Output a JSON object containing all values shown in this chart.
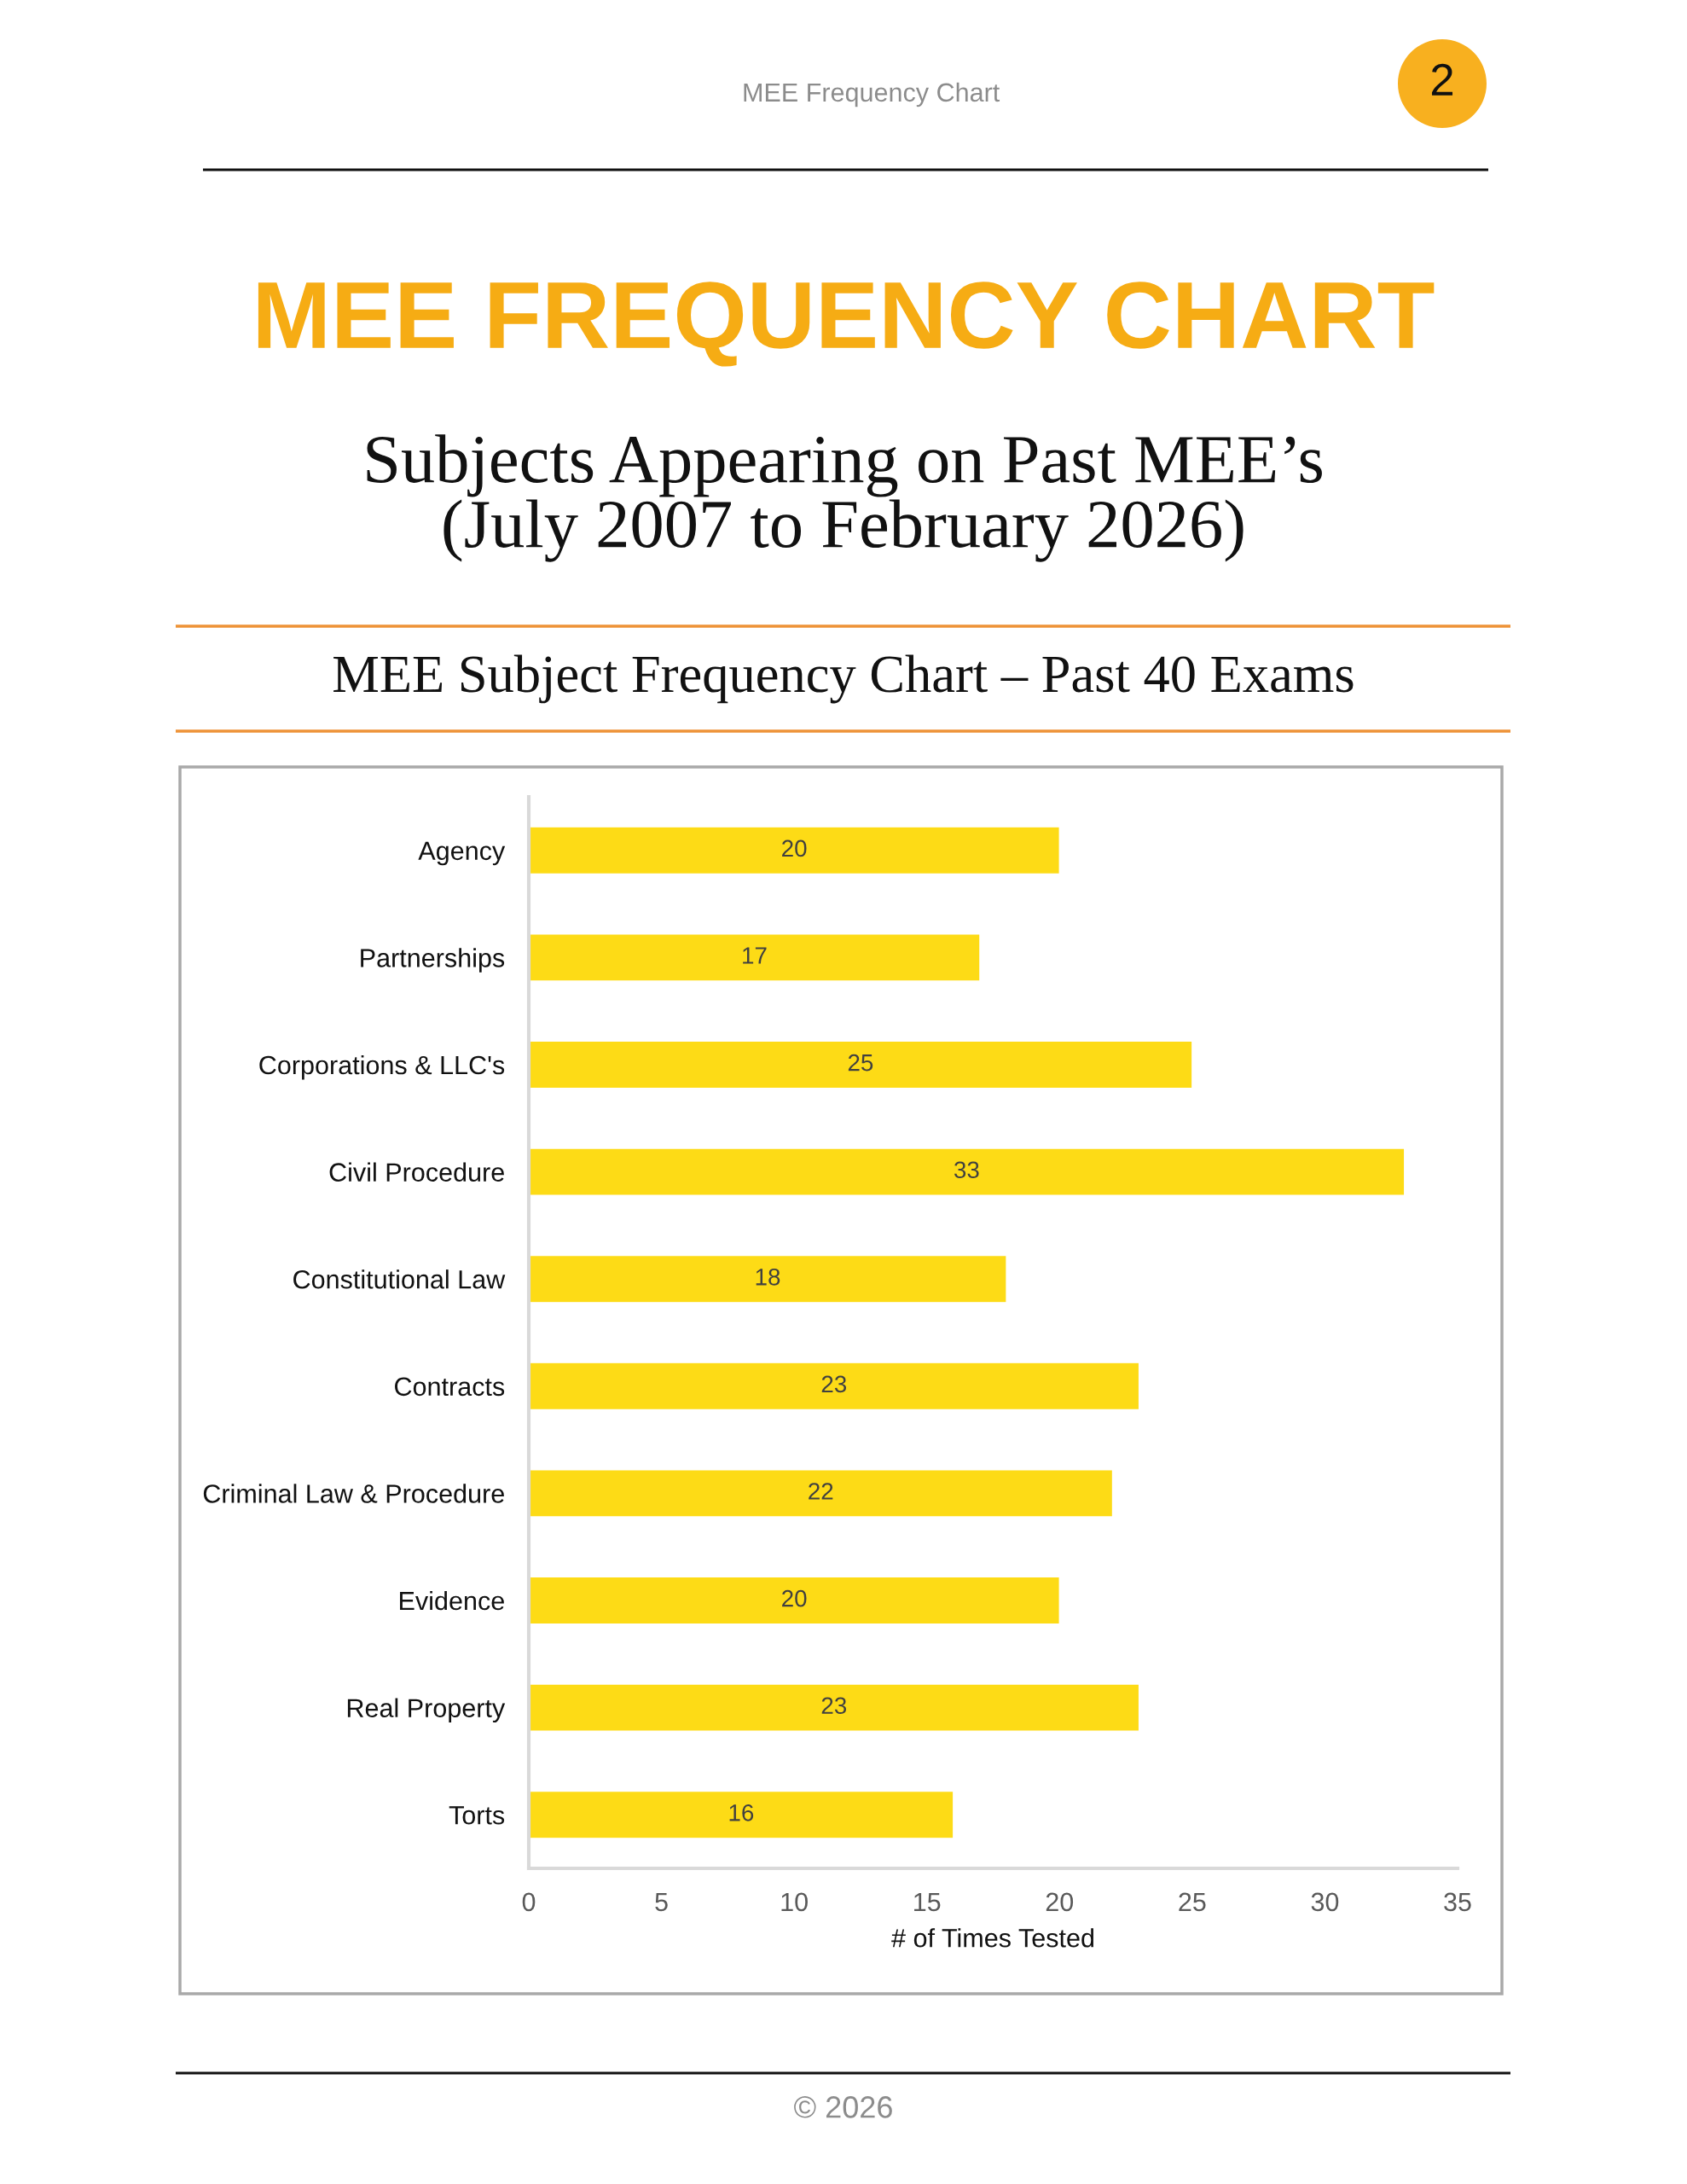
{
  "chart_data": {
    "type": "bar",
    "orientation": "horizontal",
    "title": "MEE FREQUENCY CHART",
    "subtitle": "Subjects Appearing on Past MEE’s\n(July 2007 to February 2026)",
    "annotations": [
      "MEE Frequency Chart",
      "2",
      "MEE Subject Frequency Chart – Past 40 Exams",
      "© 2026"
    ],
    "xlabel": "# of Times Tested",
    "categories": [
      "Agency",
      "Partnerships",
      "Corporations & LLC's",
      "Civil Procedure",
      "Constitutional Law",
      "Contracts",
      "Criminal Law & Procedure",
      "Evidence",
      "Real Property",
      "Torts"
    ],
    "values": [
      20,
      17,
      25,
      33,
      18,
      23,
      22,
      20,
      23,
      16
    ],
    "color": "#fddb16",
    "xlim": [
      0,
      35
    ],
    "xticks": [
      0,
      5,
      10,
      15,
      20,
      25,
      30,
      35
    ],
    "data_labels": true
  }
}
